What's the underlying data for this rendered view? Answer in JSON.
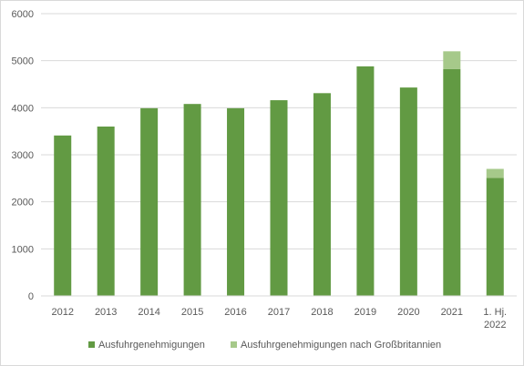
{
  "chart_data": {
    "type": "bar",
    "stacked": true,
    "categories": [
      "2012",
      "2013",
      "2014",
      "2015",
      "2016",
      "2017",
      "2018",
      "2019",
      "2020",
      "2021",
      "1. Hj. 2022"
    ],
    "series": [
      {
        "name": "Ausfuhrgenehmigungen",
        "color": "#629a43",
        "values": [
          3410,
          3600,
          3990,
          4080,
          3990,
          4160,
          4310,
          4880,
          4430,
          4820,
          2510
        ]
      },
      {
        "name": "Ausfuhrgenehmigungen nach Großbritannien",
        "color": "#a6c98a",
        "values": [
          0,
          0,
          0,
          0,
          0,
          0,
          0,
          0,
          0,
          380,
          190
        ]
      }
    ],
    "ylim": [
      0,
      6000
    ],
    "yticks": [
      0,
      1000,
      2000,
      3000,
      4000,
      5000,
      6000
    ],
    "grid": true,
    "legend_position": "bottom"
  }
}
